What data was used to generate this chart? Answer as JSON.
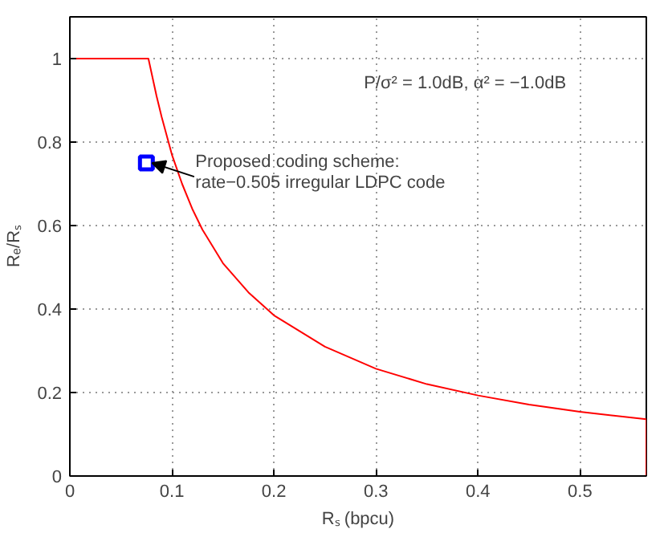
{
  "chart_data": {
    "type": "line",
    "xlabel": "Rₛ (bpcu)",
    "ylabel": "Rₑ/Rₛ",
    "xlim": [
      0,
      0.565
    ],
    "ylim": [
      0,
      1.1
    ],
    "xticks": [
      0,
      0.1,
      0.2,
      0.3,
      0.4,
      0.5
    ],
    "yticks": [
      0,
      0.2,
      0.4,
      0.6,
      0.8,
      1
    ],
    "grid": true,
    "line_style": "solid",
    "series": [
      {
        "color": "#ff0000",
        "x": [
          0,
          0.077,
          0.085,
          0.09,
          0.1,
          0.11,
          0.12,
          0.13,
          0.15,
          0.175,
          0.2,
          0.25,
          0.3,
          0.35,
          0.4,
          0.45,
          0.5,
          0.565,
          0.565
        ],
        "values": [
          1,
          1,
          0.91,
          0.86,
          0.77,
          0.7,
          0.64,
          0.59,
          0.51,
          0.44,
          0.385,
          0.31,
          0.257,
          0.22,
          0.193,
          0.171,
          0.154,
          0.136,
          0
        ]
      },
      {
        "type": "scatter",
        "color": "#0000ff",
        "marker": "square",
        "x": [
          0.075
        ],
        "values": [
          0.75
        ]
      }
    ],
    "annotations": [
      "P/σ² = 1.0dB, α² = −1.0dB",
      {
        "text": "Proposed coding scheme:\nrate−0.505 irregular LDPC code",
        "x": 0.075,
        "y": 0.75
      }
    ]
  }
}
